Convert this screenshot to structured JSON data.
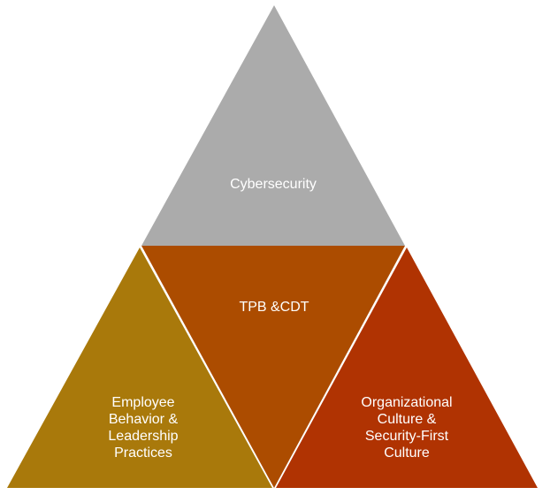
{
  "diagram": {
    "segments": [
      {
        "key": "top",
        "label": "Cybersecurity",
        "color": "#ababab"
      },
      {
        "key": "center",
        "label": "TPB &CDT",
        "color": "#ac4c00"
      },
      {
        "key": "left",
        "label_lines": [
          "Employee",
          "Behavior &",
          "Leadership",
          "Practices"
        ],
        "color": "#a9790b"
      },
      {
        "key": "right",
        "label_lines": [
          "Organizational",
          "Culture &",
          "Security-First",
          "Culture"
        ],
        "color": "#b03302"
      }
    ]
  }
}
